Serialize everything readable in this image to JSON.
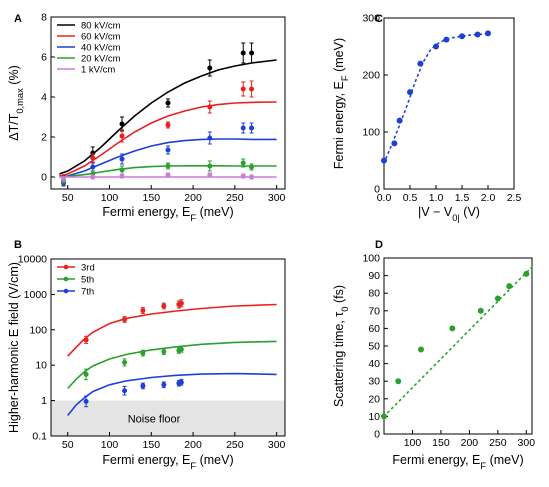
{
  "chart_data": [
    {
      "panel": "A",
      "type": "line",
      "xlabel": "Fermi energy, E_F (meV)",
      "ylabel": "ΔT/T_0,max (%)",
      "xlim": [
        30,
        310
      ],
      "ylim": [
        -0.6,
        8
      ],
      "xticks": [
        50,
        100,
        150,
        200,
        250,
        300
      ],
      "yticks": [
        0,
        2,
        4,
        6,
        8
      ],
      "legend_position": "top-left",
      "series": [
        {
          "name": "80 kV/cm",
          "color": "#000000",
          "curve": {
            "x": [
              40,
              50,
              70,
              90,
              110,
              130,
              150,
              170,
              190,
              210,
              230,
              250,
              270,
              300
            ],
            "y": [
              0.15,
              0.3,
              0.8,
              1.5,
              2.3,
              3.05,
              3.7,
              4.25,
              4.7,
              5.05,
              5.35,
              5.55,
              5.7,
              5.85
            ]
          },
          "points": [
            {
              "x": 45,
              "y": -0.15,
              "err": 0.2
            },
            {
              "x": 80,
              "y": 1.2,
              "err": 0.3
            },
            {
              "x": 115,
              "y": 2.65,
              "err": 0.35
            },
            {
              "x": 170,
              "y": 3.7,
              "err": 0.2
            },
            {
              "x": 220,
              "y": 5.45,
              "err": 0.4
            },
            {
              "x": 260,
              "y": 6.2,
              "err": 0.5
            },
            {
              "x": 270,
              "y": 6.2,
              "err": 0.5
            }
          ]
        },
        {
          "name": "60 kV/cm",
          "color": "#e8211f",
          "curve": {
            "x": [
              40,
              50,
              70,
              90,
              110,
              130,
              150,
              170,
              190,
              210,
              230,
              250,
              270,
              300
            ],
            "y": [
              0.05,
              0.15,
              0.55,
              1.1,
              1.7,
              2.25,
              2.7,
              3.05,
              3.3,
              3.5,
              3.62,
              3.7,
              3.73,
              3.75
            ]
          },
          "points": [
            {
              "x": 45,
              "y": -0.25,
              "err": 0.15
            },
            {
              "x": 80,
              "y": 0.95,
              "err": 0.2
            },
            {
              "x": 115,
              "y": 2.05,
              "err": 0.3
            },
            {
              "x": 170,
              "y": 2.6,
              "err": 0.15
            },
            {
              "x": 220,
              "y": 3.5,
              "err": 0.3
            },
            {
              "x": 260,
              "y": 4.4,
              "err": 0.35
            },
            {
              "x": 270,
              "y": 4.4,
              "err": 0.4
            }
          ]
        },
        {
          "name": "40 kV/cm",
          "color": "#1f3fd8",
          "curve": {
            "x": [
              40,
              50,
              70,
              90,
              110,
              130,
              150,
              170,
              190,
              210,
              230,
              250,
              270,
              300
            ],
            "y": [
              0.0,
              0.05,
              0.3,
              0.65,
              1.0,
              1.3,
              1.55,
              1.72,
              1.82,
              1.88,
              1.9,
              1.9,
              1.88,
              1.88
            ]
          },
          "points": [
            {
              "x": 45,
              "y": -0.3,
              "err": 0.15
            },
            {
              "x": 80,
              "y": 0.5,
              "err": 0.2
            },
            {
              "x": 115,
              "y": 0.9,
              "err": 0.25
            },
            {
              "x": 170,
              "y": 1.35,
              "err": 0.2
            },
            {
              "x": 220,
              "y": 1.95,
              "err": 0.3
            },
            {
              "x": 260,
              "y": 2.45,
              "err": 0.25
            },
            {
              "x": 270,
              "y": 2.45,
              "err": 0.25
            }
          ]
        },
        {
          "name": "20 kV/cm",
          "color": "#2ca02c",
          "curve": {
            "x": [
              40,
              50,
              70,
              90,
              110,
              130,
              150,
              170,
              190,
              210,
              230,
              250,
              270,
              300
            ],
            "y": [
              0.0,
              0.02,
              0.12,
              0.25,
              0.38,
              0.47,
              0.52,
              0.55,
              0.56,
              0.56,
              0.56,
              0.55,
              0.55,
              0.55
            ]
          },
          "points": [
            {
              "x": 45,
              "y": -0.2,
              "err": 0.1
            },
            {
              "x": 80,
              "y": 0.15,
              "err": 0.15
            },
            {
              "x": 115,
              "y": 0.35,
              "err": 0.2
            },
            {
              "x": 170,
              "y": 0.55,
              "err": 0.15
            },
            {
              "x": 220,
              "y": 0.55,
              "err": 0.25
            },
            {
              "x": 260,
              "y": 0.7,
              "err": 0.2
            },
            {
              "x": 270,
              "y": 0.5,
              "err": 0.15
            }
          ]
        },
        {
          "name": "1 kV/cm",
          "color": "#c77fd8",
          "curve": {
            "x": [
              40,
              100,
              300
            ],
            "y": [
              0.0,
              0.0,
              0.0
            ]
          },
          "points": [
            {
              "x": 45,
              "y": -0.1,
              "err": 0.1
            },
            {
              "x": 80,
              "y": 0.0,
              "err": 0.1
            },
            {
              "x": 115,
              "y": 0.05,
              "err": 0.1
            },
            {
              "x": 170,
              "y": 0.1,
              "err": 0.1
            },
            {
              "x": 220,
              "y": 0.1,
              "err": 0.1
            },
            {
              "x": 260,
              "y": 0.05,
              "err": 0.1
            },
            {
              "x": 270,
              "y": 0.0,
              "err": 0.1
            }
          ]
        }
      ]
    },
    {
      "panel": "B",
      "type": "line",
      "xlabel": "Fermi energy, E_F (meV)",
      "ylabel": "Higher-harmonic E field (V/cm)",
      "xlim": [
        30,
        310
      ],
      "ylim": [
        0.1,
        10000
      ],
      "yscale": "log",
      "xticks": [
        50,
        100,
        150,
        200,
        250,
        300
      ],
      "yticks": [
        0.1,
        1,
        10,
        100,
        1000,
        10000
      ],
      "ytick_labels": [
        "0.1",
        "1",
        "10",
        "100",
        "1000",
        "10000"
      ],
      "annotation": "Noise floor",
      "noise_floor_max": 1,
      "legend_position": "top-left",
      "series": [
        {
          "name": "3rd",
          "color": "#e8211f",
          "curve": {
            "x": [
              50,
              60,
              70,
              80,
              100,
              120,
              150,
              180,
              210,
              250,
              300
            ],
            "y": [
              18,
              32,
              55,
              85,
              150,
              210,
              280,
              340,
              400,
              470,
              520
            ]
          },
          "points": [
            {
              "x": 72,
              "y": 52,
              "err": 0.1
            },
            {
              "x": 118,
              "y": 195,
              "err": 0.08
            },
            {
              "x": 140,
              "y": 350,
              "err": 0.08
            },
            {
              "x": 165,
              "y": 470,
              "err": 0.08
            },
            {
              "x": 183,
              "y": 520,
              "err": 0.1
            },
            {
              "x": 186,
              "y": 560,
              "err": 0.1
            }
          ]
        },
        {
          "name": "5th",
          "color": "#2ca02c",
          "curve": {
            "x": [
              50,
              60,
              70,
              80,
              100,
              120,
              150,
              180,
              210,
              250,
              300
            ],
            "y": [
              2.2,
              4,
              6.5,
              9.5,
              15,
              20,
              27,
              33,
              39,
              44,
              47
            ]
          },
          "points": [
            {
              "x": 72,
              "y": 5.5,
              "err": 0.15
            },
            {
              "x": 118,
              "y": 12,
              "err": 0.1
            },
            {
              "x": 140,
              "y": 22,
              "err": 0.08
            },
            {
              "x": 165,
              "y": 24,
              "err": 0.08
            },
            {
              "x": 183,
              "y": 26,
              "err": 0.08
            },
            {
              "x": 186,
              "y": 28,
              "err": 0.08
            }
          ]
        },
        {
          "name": "7th",
          "color": "#1f3fd8",
          "curve": {
            "x": [
              50,
              60,
              70,
              80,
              100,
              120,
              150,
              180,
              210,
              250,
              300
            ],
            "y": [
              0.38,
              0.75,
              1.2,
              1.8,
              2.8,
              3.6,
              4.5,
              5.2,
              5.6,
              5.8,
              5.5
            ]
          },
          "points": [
            {
              "x": 72,
              "y": 0.95,
              "err": 0.15
            },
            {
              "x": 118,
              "y": 1.9,
              "err": 0.12
            },
            {
              "x": 140,
              "y": 2.6,
              "err": 0.08
            },
            {
              "x": 165,
              "y": 2.8,
              "err": 0.08
            },
            {
              "x": 183,
              "y": 3.1,
              "err": 0.08
            },
            {
              "x": 186,
              "y": 3.3,
              "err": 0.08
            }
          ]
        }
      ]
    },
    {
      "panel": "C",
      "type": "scatter",
      "xlabel": "|V − V_0| (V)",
      "ylabel": "Fermi energy, E_F (meV)",
      "xlim": [
        0,
        2.5
      ],
      "ylim": [
        0,
        300
      ],
      "xticks": [
        0.0,
        0.5,
        1.0,
        1.5,
        2.0,
        2.5
      ],
      "xtick_labels": [
        "0.0",
        "0.5",
        "1.0",
        "1.5",
        "2.0",
        "2.5"
      ],
      "yticks": [
        0,
        100,
        200,
        300
      ],
      "color": "#1f3fd8",
      "points": [
        {
          "x": 0.0,
          "y": 50
        },
        {
          "x": 0.2,
          "y": 80
        },
        {
          "x": 0.3,
          "y": 120
        },
        {
          "x": 0.5,
          "y": 170
        },
        {
          "x": 0.7,
          "y": 220
        },
        {
          "x": 1.0,
          "y": 250
        },
        {
          "x": 1.2,
          "y": 262
        },
        {
          "x": 1.5,
          "y": 268
        },
        {
          "x": 1.8,
          "y": 271
        },
        {
          "x": 2.0,
          "y": 273
        }
      ],
      "fit": {
        "x": [
          0.0,
          0.15,
          0.3,
          0.45,
          0.6,
          0.75,
          0.9,
          1.05,
          1.2,
          1.35,
          1.5,
          1.65,
          1.8,
          1.95,
          2.05
        ],
        "y": [
          45,
          78,
          112,
          148,
          188,
          222,
          245,
          256,
          263,
          266,
          268,
          270,
          271,
          272,
          272
        ]
      }
    },
    {
      "panel": "D",
      "type": "scatter",
      "xlabel": "Fermi energy, E_F (meV)",
      "ylabel": "Scattering time, τ_0 (fs)",
      "xlim": [
        50,
        310
      ],
      "ylim": [
        0,
        100
      ],
      "xticks": [
        100,
        150,
        200,
        250,
        300
      ],
      "yticks": [
        0,
        10,
        20,
        30,
        40,
        50,
        60,
        70,
        80,
        90,
        100
      ],
      "color": "#2ca02c",
      "points": [
        {
          "x": 50,
          "y": 10
        },
        {
          "x": 75,
          "y": 30
        },
        {
          "x": 115,
          "y": 48
        },
        {
          "x": 170,
          "y": 60
        },
        {
          "x": 220,
          "y": 70
        },
        {
          "x": 250,
          "y": 77
        },
        {
          "x": 270,
          "y": 84
        },
        {
          "x": 300,
          "y": 91
        }
      ],
      "fit": {
        "x": [
          50,
          310
        ],
        "y": [
          10,
          95
        ]
      }
    }
  ]
}
